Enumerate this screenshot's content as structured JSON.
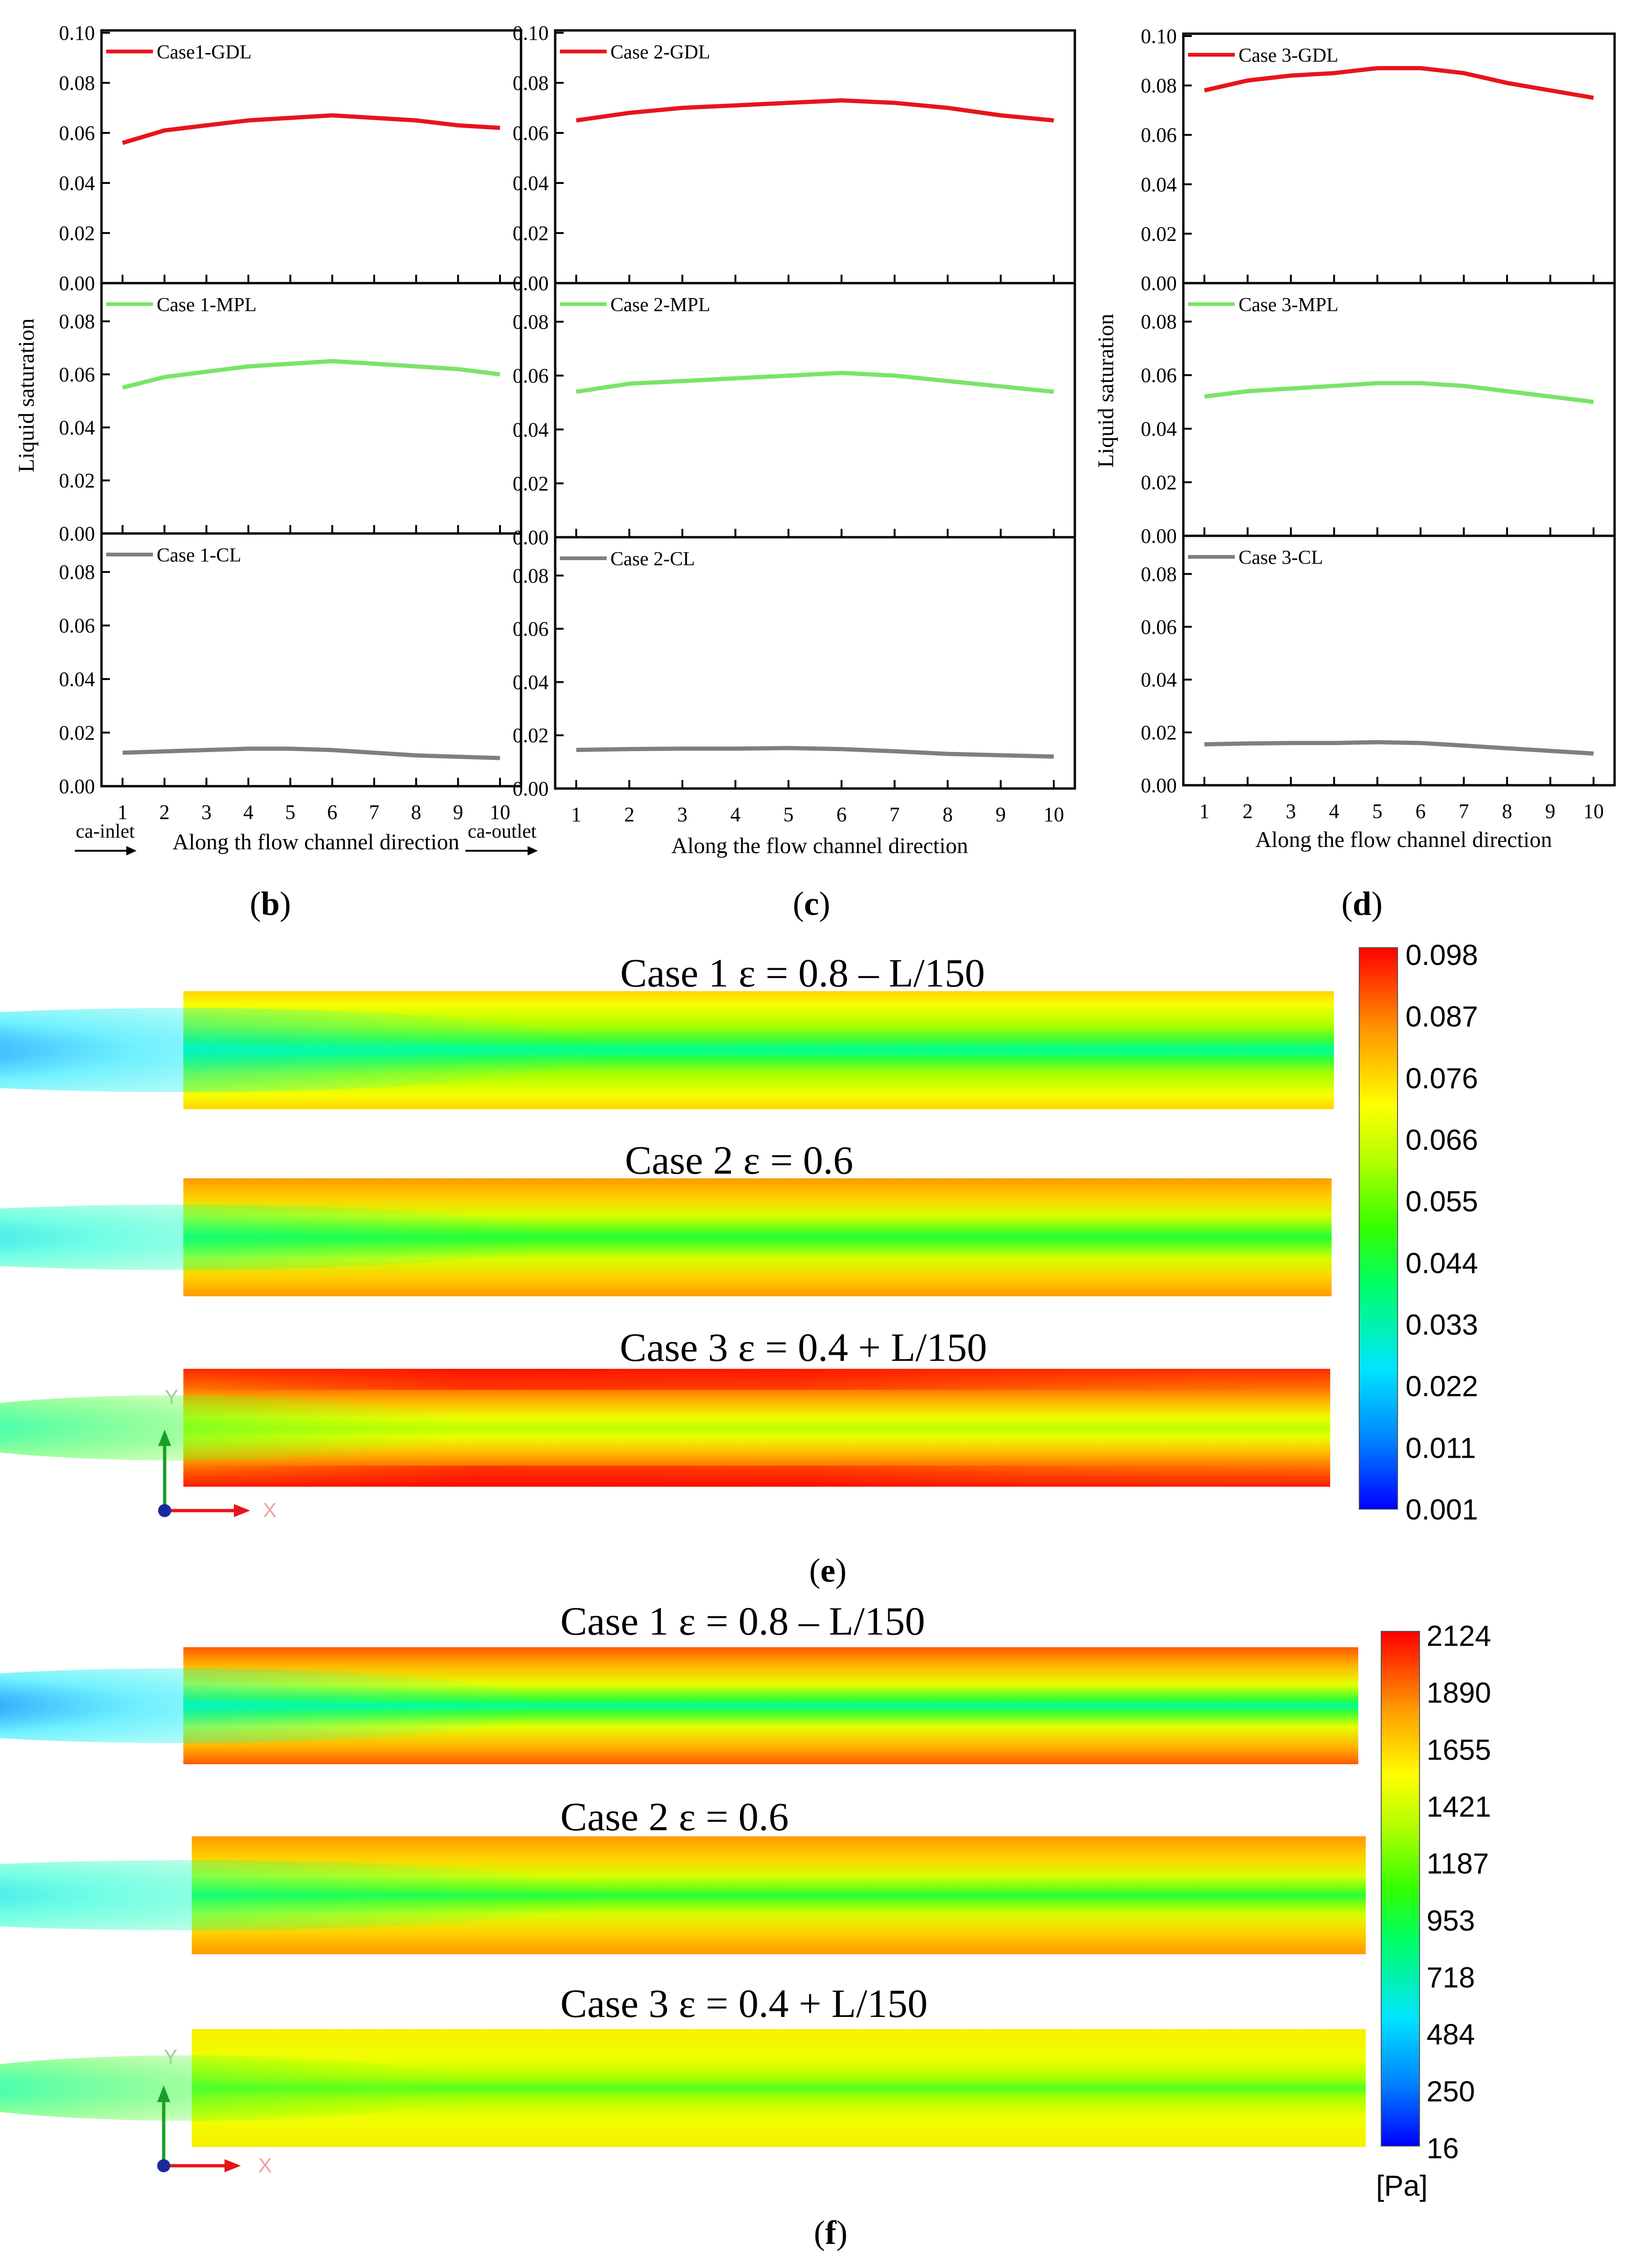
{
  "chart_data": [
    {
      "type": "line",
      "panel": "b",
      "xlabel": "Along th flow channel direction",
      "inlet_label": "ca-inlet",
      "outlet_label": "ca-outlet",
      "ylabel": "Liquid saturation",
      "x": [
        1,
        2,
        3,
        4,
        5,
        6,
        7,
        8,
        9,
        10
      ],
      "subplots": [
        {
          "name": "Case1-GDL",
          "color": "#e8141b",
          "ylim": [
            0,
            0.1
          ],
          "yticks": [
            "0.00",
            "0.02",
            "0.04",
            "0.06",
            "0.08",
            "0.10"
          ],
          "values": [
            0.056,
            0.061,
            0.063,
            0.065,
            0.066,
            0.067,
            0.066,
            0.065,
            0.063,
            0.062
          ]
        },
        {
          "name": "Case 1-MPL",
          "color": "#7be36a",
          "ylim": [
            0,
            0.09
          ],
          "yticks": [
            "0.00",
            "0.02",
            "0.04",
            "0.06",
            "0.08"
          ],
          "values": [
            0.055,
            0.059,
            0.061,
            0.063,
            0.064,
            0.065,
            0.064,
            0.063,
            0.062,
            0.06
          ]
        },
        {
          "name": "Case 1-CL",
          "color": "#7f7f7f",
          "ylim": [
            0,
            0.09
          ],
          "yticks": [
            "0.00",
            "0.02",
            "0.04",
            "0.06",
            "0.08"
          ],
          "values": [
            0.0125,
            0.013,
            0.0135,
            0.014,
            0.014,
            0.0135,
            0.0125,
            0.0115,
            0.011,
            0.0105
          ]
        }
      ]
    },
    {
      "type": "line",
      "panel": "c",
      "xlabel": "Along the flow channel direction",
      "x": [
        1,
        2,
        3,
        4,
        5,
        6,
        7,
        8,
        9,
        10
      ],
      "subplots": [
        {
          "name": "Case 2-GDL",
          "color": "#e8141b",
          "ylim": [
            0,
            0.1
          ],
          "yticks": [
            "0.00",
            "0.02",
            "0.04",
            "0.06",
            "0.08",
            "0.10"
          ],
          "values": [
            0.065,
            0.068,
            0.07,
            0.071,
            0.072,
            0.073,
            0.072,
            0.07,
            0.067,
            0.065
          ]
        },
        {
          "name": "Case 2-MPL",
          "color": "#7be36a",
          "ylim": [
            0,
            0.09
          ],
          "yticks": [
            "0.00",
            "0.02",
            "0.04",
            "0.06",
            "0.08"
          ],
          "values": [
            0.054,
            0.057,
            0.058,
            0.059,
            0.06,
            0.061,
            0.06,
            0.058,
            0.056,
            0.054
          ]
        },
        {
          "name": "Case 2-CL",
          "color": "#7f7f7f",
          "ylim": [
            0,
            0.09
          ],
          "yticks": [
            "0.00",
            "0.02",
            "0.04",
            "0.06",
            "0.08"
          ],
          "values": [
            0.0145,
            0.0148,
            0.015,
            0.015,
            0.0152,
            0.0148,
            0.014,
            0.013,
            0.0125,
            0.012
          ]
        }
      ]
    },
    {
      "type": "line",
      "panel": "d",
      "xlabel": "Along the flow channel direction",
      "ylabel": "Liquid saturation",
      "x": [
        1,
        2,
        3,
        4,
        5,
        6,
        7,
        8,
        9,
        10
      ],
      "subplots": [
        {
          "name": "Case 3-GDL",
          "color": "#e8141b",
          "ylim": [
            0,
            0.1
          ],
          "yticks": [
            "0.00",
            "0.02",
            "0.04",
            "0.06",
            "0.08",
            "0.10"
          ],
          "values": [
            0.078,
            0.082,
            0.084,
            0.085,
            0.087,
            0.087,
            0.085,
            0.081,
            0.078,
            0.075
          ]
        },
        {
          "name": "Case 3-MPL",
          "color": "#7be36a",
          "ylim": [
            0,
            0.09
          ],
          "yticks": [
            "0.00",
            "0.02",
            "0.04",
            "0.06",
            "0.08"
          ],
          "values": [
            0.052,
            0.054,
            0.055,
            0.056,
            0.057,
            0.057,
            0.056,
            0.054,
            0.052,
            0.05
          ]
        },
        {
          "name": "Case 3-CL",
          "color": "#7f7f7f",
          "ylim": [
            0,
            0.09
          ],
          "yticks": [
            "0.00",
            "0.02",
            "0.04",
            "0.06",
            "0.08"
          ],
          "values": [
            0.0155,
            0.0158,
            0.016,
            0.016,
            0.0163,
            0.016,
            0.015,
            0.014,
            0.013,
            0.012
          ]
        }
      ]
    },
    {
      "type": "heatmap",
      "panel": "e",
      "cases": [
        "Case 1 ε = 0.8 – L/150",
        "Case 2 ε = 0.6",
        "Case 3 ε = 0.4 + L/150"
      ],
      "colorbar_ticks": [
        "0.098",
        "0.087",
        "0.076",
        "0.066",
        "0.055",
        "0.044",
        "0.033",
        "0.022",
        "0.011",
        "0.001"
      ],
      "colorbar_unit": "",
      "axis_y": "Y",
      "axis_x": "X"
    },
    {
      "type": "heatmap",
      "panel": "f",
      "cases": [
        "Case 1 ε = 0.8 – L/150",
        "Case 2 ε = 0.6",
        "Case 3 ε = 0.4 + L/150"
      ],
      "colorbar_ticks": [
        "2124",
        "1890",
        "1655",
        "1421",
        "1187",
        "953",
        "718",
        "484",
        "250",
        "16"
      ],
      "colorbar_unit": "[Pa]",
      "axis_y": "Y",
      "axis_x": "X"
    }
  ],
  "panel_letters": [
    "b",
    "c",
    "d",
    "e",
    "f"
  ]
}
